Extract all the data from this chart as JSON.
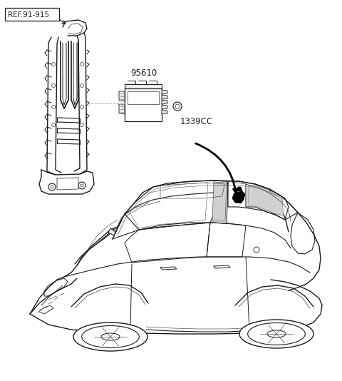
{
  "bg_color": "#ffffff",
  "line_color": "#1a1a1a",
  "gray_color": "#aaaaaa",
  "dark_gray": "#555555",
  "label_ref": "REF.91-915",
  "label_95610": "95610",
  "label_1339CC": "1339CC",
  "fig_width": 4.8,
  "fig_height": 5.34,
  "dpi": 100
}
